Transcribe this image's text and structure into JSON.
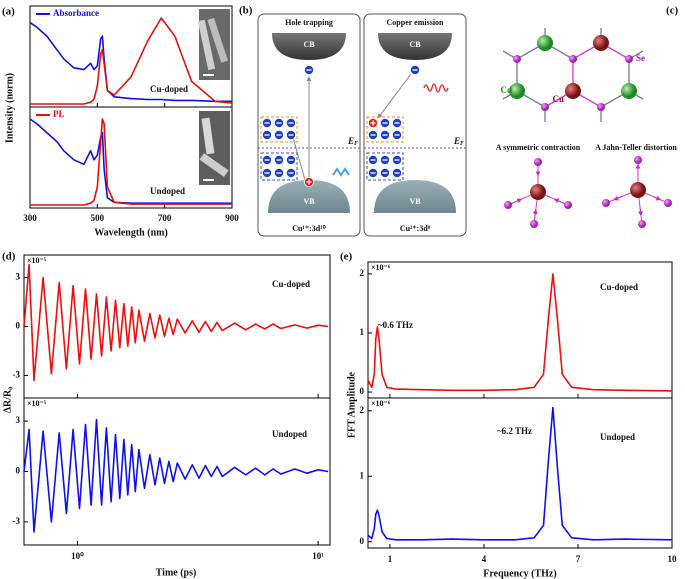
{
  "chart_data": [
    {
      "type": "line",
      "label": "(a)",
      "xlabel": "Wavelength (nm)",
      "ylabel": "Intensity (norm)",
      "xlim": [
        300,
        900
      ],
      "xticks": [
        300,
        500,
        700,
        900
      ],
      "x": [
        300,
        320,
        350,
        380,
        400,
        430,
        460,
        480,
        490,
        500,
        510,
        515,
        520,
        530,
        550,
        600,
        650,
        690,
        730,
        780,
        850,
        900
      ],
      "subplots": [
        {
          "annotation": "Cu-doped",
          "ylim": [
            0,
            1.05
          ],
          "series": [
            {
              "name": "Absorbance",
              "color": "#1010e0",
              "values": [
                0.9,
                0.85,
                0.75,
                0.6,
                0.5,
                0.4,
                0.38,
                0.45,
                0.38,
                0.42,
                0.72,
                0.75,
                0.5,
                0.15,
                0.08,
                0.06,
                0.05,
                0.05,
                0.04,
                0.04,
                0.03,
                0.03
              ]
            },
            {
              "color": "#e01010",
              "values": [
                0,
                0,
                0,
                0,
                0,
                0,
                0,
                0.02,
                0.05,
                0.2,
                0.55,
                0.6,
                0.45,
                0.15,
                0.1,
                0.3,
                0.7,
                0.95,
                0.75,
                0.25,
                0.03,
                0.01
              ]
            }
          ]
        },
        {
          "annotation": "Undoped",
          "ylim": [
            0,
            1.05
          ],
          "series": [
            {
              "color": "#1010e0",
              "values": [
                0.95,
                0.9,
                0.8,
                0.7,
                0.6,
                0.5,
                0.45,
                0.6,
                0.5,
                0.55,
                0.75,
                0.8,
                0.4,
                0.08,
                0.03,
                0.02,
                0.02,
                0.02,
                0.02,
                0.02,
                0.02,
                0.02
              ]
            },
            {
              "name": "PL",
              "color": "#e01010",
              "values": [
                0,
                0,
                0,
                0,
                0,
                0,
                0,
                0.02,
                0.05,
                0.2,
                0.7,
                0.95,
                0.9,
                0.2,
                0.03,
                0.01,
                0.01,
                0.01,
                0.01,
                0.01,
                0.01,
                0.01
              ]
            }
          ]
        }
      ]
    },
    {
      "type": "line",
      "label": "(d)",
      "xlabel": "Time (ps)",
      "ylabel": "ΔR/R₀",
      "log_x": true,
      "xlim": [
        0.6,
        11.2
      ],
      "xticks": [
        {
          "value": 1,
          "label": "10⁰"
        },
        {
          "value": 10,
          "label": "10¹"
        }
      ],
      "x": [
        0.6,
        0.63,
        0.66,
        0.72,
        0.78,
        0.84,
        0.9,
        0.96,
        1.02,
        1.08,
        1.14,
        1.2,
        1.26,
        1.32,
        1.38,
        1.44,
        1.5,
        1.56,
        1.62,
        1.68,
        1.74,
        1.8,
        1.9,
        2.0,
        2.1,
        2.2,
        2.3,
        2.4,
        2.5,
        2.6,
        2.8,
        3.0,
        3.2,
        3.4,
        3.6,
        3.8,
        4.0,
        4.5,
        5,
        5.5,
        6,
        6.5,
        7,
        8,
        9,
        10,
        11
      ],
      "subplots": [
        {
          "annotation": "Cu-doped",
          "multiplier": "×10⁻⁵",
          "ylim": [
            -4.2,
            4.2
          ],
          "yticks": [
            3,
            0,
            -3
          ],
          "series": [
            {
              "color": "#e81010",
              "values": [
                0,
                3.8,
                -3.3,
                3.0,
                -2.9,
                2.7,
                -2.6,
                2.5,
                -2.3,
                2.3,
                -2.0,
                2.0,
                -1.8,
                1.8,
                -1.5,
                1.6,
                -1.3,
                1.4,
                -1.2,
                1.2,
                -1.0,
                1.0,
                -0.9,
                0.8,
                -0.7,
                0.7,
                -0.6,
                0.5,
                -0.5,
                0.45,
                -0.4,
                0.35,
                -0.35,
                0.3,
                -0.3,
                0.25,
                -0.25,
                0.2,
                -0.2,
                0.15,
                -0.15,
                0.15,
                -0.12,
                0.1,
                -0.1,
                0.08,
                0
              ]
            }
          ]
        },
        {
          "annotation": "Undoped",
          "multiplier": "×10⁻⁵",
          "ylim": [
            -4.2,
            4.2
          ],
          "yticks": [
            3,
            0,
            -3
          ],
          "series": [
            {
              "color": "#1010e8",
              "values": [
                0,
                2.5,
                -3.6,
                2.4,
                -3.0,
                2.3,
                -2.5,
                2.5,
                -2.2,
                2.8,
                -2.0,
                3.1,
                -2.0,
                2.6,
                -1.8,
                2.2,
                -1.6,
                1.9,
                -1.4,
                1.6,
                -1.2,
                1.3,
                -1.0,
                1.0,
                -0.8,
                0.8,
                -0.7,
                0.6,
                -0.6,
                0.5,
                -0.45,
                0.4,
                -0.4,
                0.35,
                -0.3,
                0.3,
                -0.3,
                0.25,
                -0.2,
                0.2,
                -0.2,
                0.15,
                -0.15,
                0.15,
                -0.1,
                0.1,
                0
              ]
            }
          ]
        }
      ]
    },
    {
      "type": "line",
      "label": "(e)",
      "xlabel": "Frequency (THz)",
      "ylabel": "FFT Amplitude",
      "xlim": [
        0.3,
        10
      ],
      "xticks": [
        1,
        4,
        7,
        10
      ],
      "x": [
        0.3,
        0.42,
        0.5,
        0.55,
        0.6,
        0.65,
        0.75,
        0.9,
        1.2,
        2,
        3,
        4,
        5,
        5.6,
        5.9,
        6.05,
        6.2,
        6.35,
        6.5,
        6.8,
        7.5,
        8.5,
        10
      ],
      "subplots": [
        {
          "annotation": "Cu-doped",
          "peak_label": "~0.6 THz",
          "multiplier": "×10⁻⁶",
          "ylim": [
            -0.05,
            2.15
          ],
          "yticks": [
            0,
            1,
            2
          ],
          "series": [
            {
              "color": "#e81010",
              "values": [
                0.2,
                0.08,
                0.3,
                0.9,
                1.1,
                0.9,
                0.3,
                0.08,
                0.05,
                0.04,
                0.03,
                0.03,
                0.04,
                0.08,
                0.3,
                1.2,
                2.0,
                1.2,
                0.3,
                0.08,
                0.04,
                0.03,
                0.02
              ]
            }
          ]
        },
        {
          "annotation": "Undoped",
          "peak_label": "~6.2 THz",
          "multiplier": "×10⁻⁶",
          "ylim": [
            -0.05,
            2.15
          ],
          "yticks": [
            0,
            1,
            2
          ],
          "series": [
            {
              "color": "#1010e8",
              "values": [
                0.1,
                0.05,
                0.2,
                0.42,
                0.48,
                0.4,
                0.15,
                0.05,
                0.03,
                0.03,
                0.04,
                0.03,
                0.03,
                0.06,
                0.25,
                1.2,
                2.05,
                1.1,
                0.25,
                0.06,
                0.03,
                0.04,
                0.03
              ]
            }
          ]
        }
      ]
    }
  ],
  "diagrams": {
    "band": {
      "label": "(b)",
      "left": {
        "title": "Hole trapping",
        "cb": "CB",
        "vb": "VB",
        "fermi": "E",
        "fermi_sub": "F",
        "config": "Cu¹⁺:3d¹⁰"
      },
      "right": {
        "title": "Copper emission",
        "cb": "CB",
        "vb": "VB",
        "fermi": "E",
        "fermi_sub": "F",
        "config": "Cu²⁺:3d⁹"
      }
    },
    "lattice": {
      "label": "(c)",
      "cd": "Cd",
      "cu": "Cu",
      "se": "Se",
      "left_caption": "A symmetric contraction",
      "right_caption": "A Jahn-Teller distortion"
    }
  }
}
